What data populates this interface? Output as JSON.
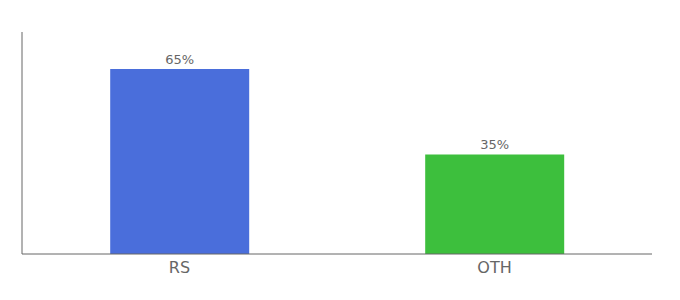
{
  "chart_data": {
    "type": "bar",
    "categories": [
      "RS",
      "OTH"
    ],
    "values": [
      65,
      35
    ],
    "value_labels": [
      "65%",
      "35%"
    ],
    "colors": [
      "#4a6edb",
      "#3dbf3d"
    ],
    "ylim": [
      0,
      78
    ],
    "data_labels": true,
    "tick_labels": "x",
    "grid": false
  }
}
